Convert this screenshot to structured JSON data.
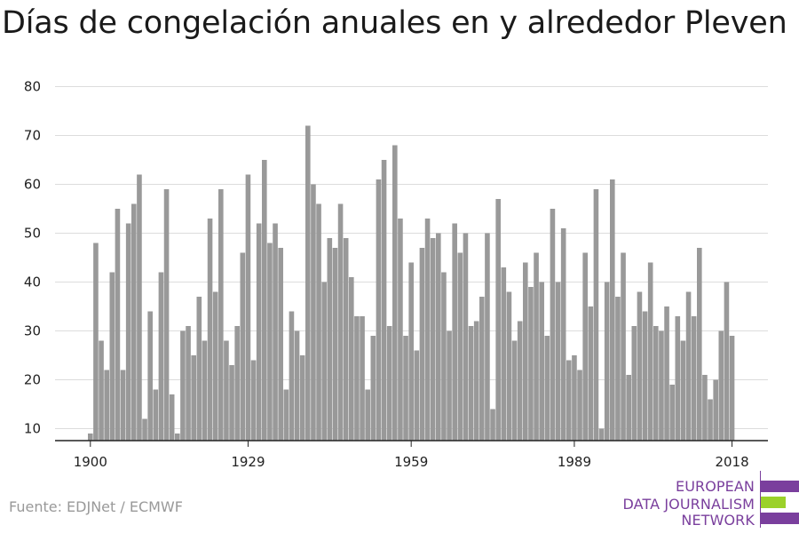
{
  "title": "Días de congelación anuales en y alrededor Pleven",
  "source": "Fuente: EDJNet / ECMWF",
  "logo": {
    "lines": [
      "EUROPEAN",
      "DATA JOURNALISM",
      "NETWORK"
    ],
    "colors": {
      "text": "#7a3f9d",
      "purple": "#7a3f9d",
      "green": "#9bd12a"
    }
  },
  "chart_data": {
    "type": "bar",
    "title": "Días de congelación anuales en y alrededor Pleven",
    "xlabel": "",
    "ylabel": "",
    "ylim": [
      7,
      80
    ],
    "yticks": [
      10,
      20,
      30,
      40,
      50,
      60,
      70,
      80
    ],
    "xticks": [
      1900,
      1929,
      1959,
      1989,
      2018
    ],
    "bar_color": "#999999",
    "grid": true,
    "years": [
      1900,
      1901,
      1902,
      1903,
      1904,
      1905,
      1906,
      1907,
      1908,
      1909,
      1910,
      1911,
      1912,
      1913,
      1914,
      1915,
      1916,
      1917,
      1918,
      1919,
      1920,
      1921,
      1922,
      1923,
      1924,
      1925,
      1926,
      1927,
      1928,
      1929,
      1930,
      1931,
      1932,
      1933,
      1934,
      1935,
      1936,
      1937,
      1938,
      1939,
      1940,
      1941,
      1942,
      1943,
      1944,
      1945,
      1946,
      1947,
      1948,
      1949,
      1950,
      1951,
      1952,
      1953,
      1954,
      1955,
      1956,
      1957,
      1958,
      1959,
      1960,
      1961,
      1962,
      1963,
      1964,
      1965,
      1966,
      1967,
      1968,
      1969,
      1970,
      1971,
      1972,
      1973,
      1974,
      1975,
      1976,
      1977,
      1978,
      1979,
      1980,
      1981,
      1982,
      1983,
      1984,
      1985,
      1986,
      1987,
      1988,
      1989,
      1990,
      1991,
      1992,
      1993,
      1994,
      1995,
      1996,
      1997,
      1998,
      1999,
      2000,
      2001,
      2002,
      2003,
      2004,
      2005,
      2006,
      2007,
      2008,
      2009,
      2010,
      2011,
      2012,
      2013,
      2014,
      2015,
      2016,
      2017,
      2018
    ],
    "values": [
      9,
      48,
      28,
      22,
      42,
      55,
      22,
      52,
      56,
      62,
      12,
      34,
      18,
      42,
      59,
      17,
      9,
      30,
      31,
      25,
      37,
      28,
      53,
      38,
      59,
      28,
      23,
      31,
      46,
      62,
      24,
      52,
      65,
      48,
      52,
      47,
      18,
      34,
      30,
      25,
      72,
      60,
      56,
      40,
      49,
      47,
      56,
      49,
      41,
      33,
      33,
      18,
      29,
      61,
      65,
      31,
      68,
      53,
      29,
      44,
      26,
      47,
      53,
      49,
      50,
      42,
      30,
      52,
      46,
      50,
      31,
      32,
      37,
      50,
      14,
      57,
      43,
      38,
      28,
      32,
      44,
      39,
      46,
      40,
      29,
      55,
      40,
      51,
      24,
      25,
      22,
      46,
      35,
      59,
      10,
      40,
      61,
      37,
      46,
      21,
      31,
      38,
      34,
      44,
      31,
      30,
      35,
      19,
      33,
      28,
      38,
      33,
      47,
      21,
      16,
      20,
      30,
      40,
      29
    ]
  }
}
